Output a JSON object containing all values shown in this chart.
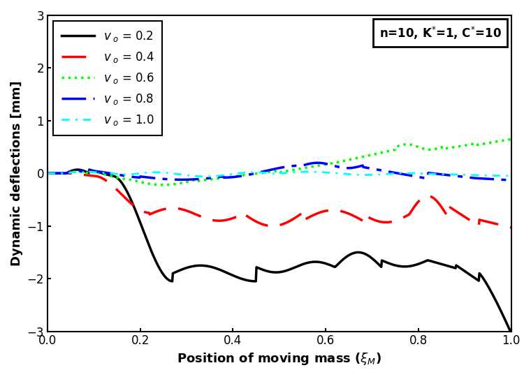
{
  "title": "",
  "xlabel": "Position of moving mass ($\\xi_{M}$)",
  "ylabel": "Dynamic deflections [mm]",
  "annotation": "n=10, K$^{*}$=1, C$^{*}$=10",
  "xlim": [
    0.0,
    1.0
  ],
  "ylim": [
    -3.0,
    3.0
  ],
  "yticks": [
    -3,
    -2,
    -1,
    0,
    1,
    2,
    3
  ],
  "xticks": [
    0.0,
    0.2,
    0.4,
    0.6,
    0.8,
    1.0
  ],
  "colors": [
    "black",
    "red",
    "green",
    "blue",
    "cyan"
  ],
  "linewidths": [
    2.5,
    2.5,
    2.5,
    2.5,
    2.0
  ],
  "background_color": "white"
}
